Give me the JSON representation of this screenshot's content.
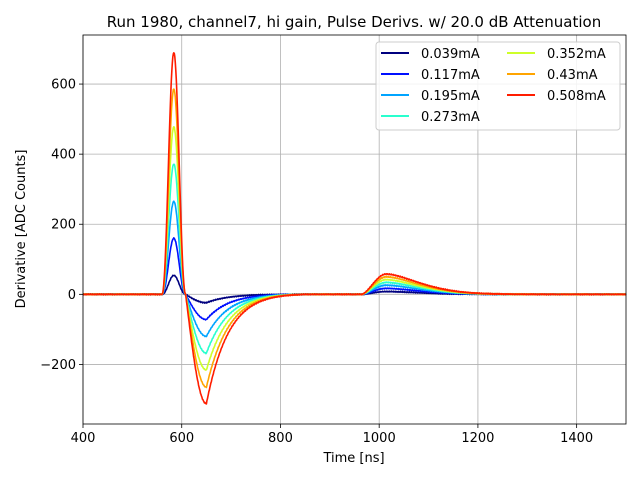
{
  "chart_data": {
    "type": "line",
    "title": "Run 1980, channel7, hi gain, Pulse Derivs. w/ 20.0 dB Attenuation",
    "xlabel": "Time [ns]",
    "ylabel": "Derivative [ADC Counts]",
    "xlim": [
      400,
      1500
    ],
    "ylim": [
      -370,
      740
    ],
    "x_ticks": [
      400,
      600,
      800,
      1000,
      1200,
      1400
    ],
    "x_tick_labels": [
      "400",
      "600",
      "800",
      "1000",
      "1200",
      "1400"
    ],
    "y_ticks": [
      -200,
      0,
      200,
      400,
      600
    ],
    "y_tick_labels": [
      "−200",
      "0",
      "200",
      "400",
      "600"
    ],
    "grid": true,
    "legend_placement": "top-right",
    "legend_columns": 2,
    "series": [
      {
        "name": "0.039mA",
        "color": "#00007f",
        "peak": 54,
        "trough": -24,
        "bump": 8
      },
      {
        "name": "0.117mA",
        "color": "#0010ff",
        "peak": 160,
        "trough": -72,
        "bump": 17
      },
      {
        "name": "0.195mA",
        "color": "#00a4ff",
        "peak": 265,
        "trough": -120,
        "bump": 26
      },
      {
        "name": "0.273mA",
        "color": "#29ffce",
        "peak": 372,
        "trough": -168,
        "bump": 34
      },
      {
        "name": "0.352mA",
        "color": "#ceff29",
        "peak": 478,
        "trough": -216,
        "bump": 42
      },
      {
        "name": "0.43mA",
        "color": "#ffa400",
        "peak": 586,
        "trough": -265,
        "bump": 50
      },
      {
        "name": "0.508mA",
        "color": "#ff1d00",
        "peak": 690,
        "trough": -312,
        "bump": 58
      }
    ]
  }
}
